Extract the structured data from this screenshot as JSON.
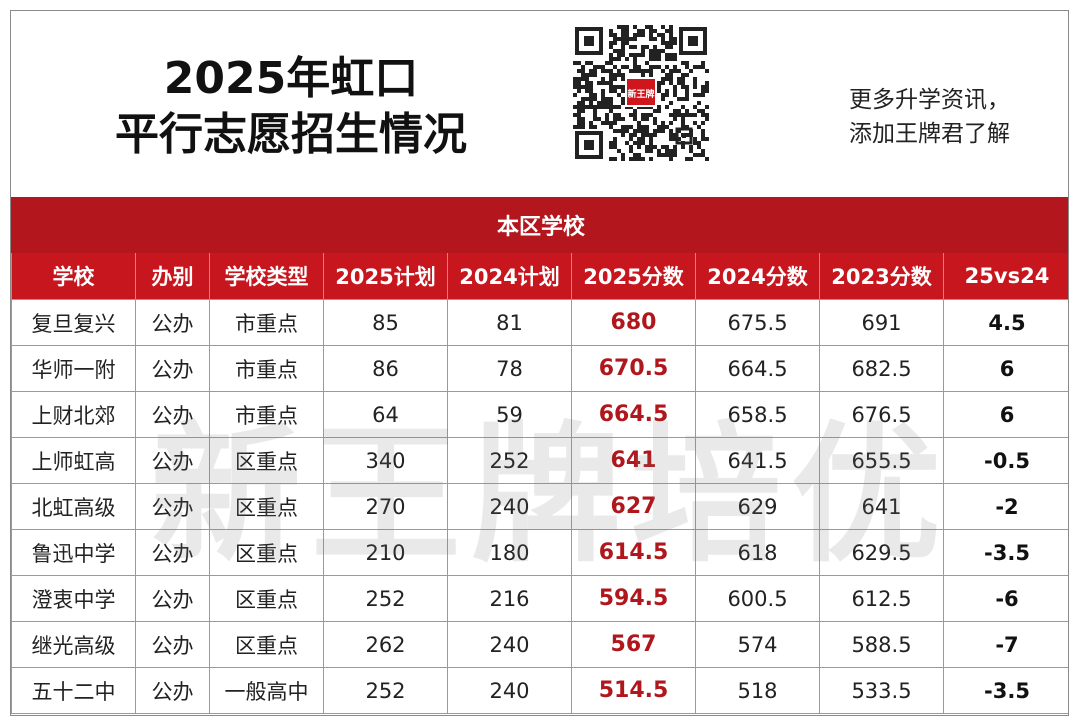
{
  "header": {
    "title_line1": "2025年虹口",
    "title_line2": "平行志愿招生情况",
    "promo_line1": "更多升学资讯，",
    "promo_line2": "添加王牌君了解"
  },
  "qr": {
    "center_logo_text": "新王牌",
    "icon": "qr-code-icon"
  },
  "table": {
    "section_title": "本区学校",
    "columns": [
      "学校",
      "办别",
      "学校类型",
      "2025计划",
      "2024计划",
      "2025分数",
      "2024分数",
      "2023分数",
      "25vs24"
    ],
    "rows": [
      [
        "复旦复兴",
        "公办",
        "市重点",
        "85",
        "81",
        "680",
        "675.5",
        "691",
        "4.5"
      ],
      [
        "华师一附",
        "公办",
        "市重点",
        "86",
        "78",
        "670.5",
        "664.5",
        "682.5",
        "6"
      ],
      [
        "上财北郊",
        "公办",
        "市重点",
        "64",
        "59",
        "664.5",
        "658.5",
        "676.5",
        "6"
      ],
      [
        "上师虹高",
        "公办",
        "区重点",
        "340",
        "252",
        "641",
        "641.5",
        "655.5",
        "-0.5"
      ],
      [
        "北虹高级",
        "公办",
        "区重点",
        "270",
        "240",
        "627",
        "629",
        "641",
        "-2"
      ],
      [
        "鲁迅中学",
        "公办",
        "区重点",
        "210",
        "180",
        "614.5",
        "618",
        "629.5",
        "-3.5"
      ],
      [
        "澄衷中学",
        "公办",
        "区重点",
        "252",
        "216",
        "594.5",
        "600.5",
        "612.5",
        "-6"
      ],
      [
        "继光高级",
        "公办",
        "区重点",
        "262",
        "240",
        "567",
        "574",
        "588.5",
        "-7"
      ],
      [
        "五十二中",
        "公办",
        "一般高中",
        "252",
        "240",
        "514.5",
        "518",
        "533.5",
        "-3.5"
      ]
    ]
  },
  "watermark": "新王牌培优",
  "colors": {
    "header_red": "#c8161e",
    "score_red": "#b0171c"
  }
}
